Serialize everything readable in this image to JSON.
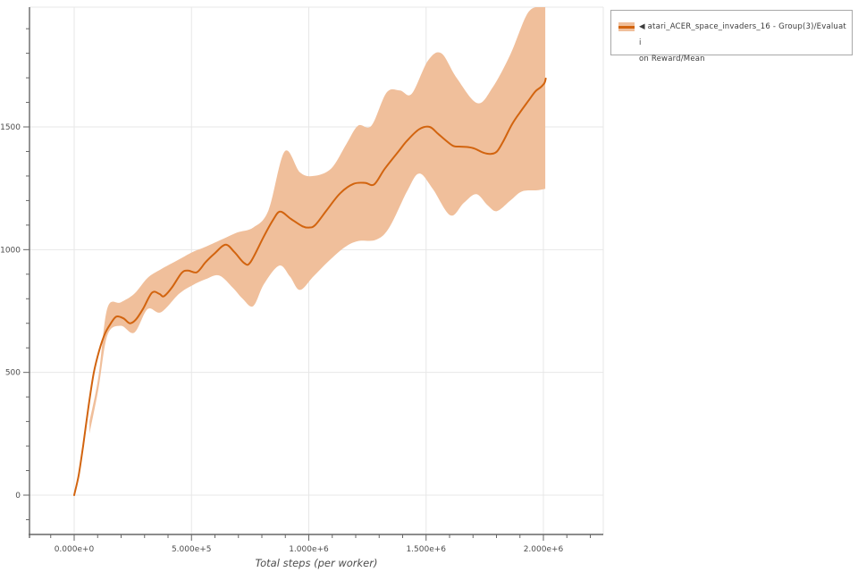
{
  "chart_data": {
    "type": "line",
    "title": "",
    "xlabel": "Total steps (per worker)",
    "ylabel": "",
    "grid": true,
    "xlim": [
      -190000,
      2260000
    ],
    "ylim": [
      -160,
      1988
    ],
    "x_ticks": {
      "values": [
        0,
        500000,
        1000000,
        1500000,
        2000000
      ],
      "labels": [
        "0.000e+0",
        "5.000e+5",
        "1.000e+6",
        "1.500e+6",
        "2.000e+6"
      ]
    },
    "x_minor_step": 100000,
    "y_ticks": {
      "values": [
        0,
        500,
        1000,
        1500
      ],
      "labels": [
        "0",
        "500",
        "1000",
        "1500"
      ]
    },
    "y_minor_step": 100,
    "legend_position": "top-right",
    "series": [
      {
        "name": "Evaluation Reward/Mean",
        "color": "#d2640f",
        "points": [
          [
            0,
            0
          ],
          [
            19000,
            80
          ],
          [
            38000,
            200
          ],
          [
            61000,
            360
          ],
          [
            84000,
            500
          ],
          [
            107000,
            590
          ],
          [
            130000,
            655
          ],
          [
            153000,
            695
          ],
          [
            179000,
            727
          ],
          [
            210000,
            720
          ],
          [
            237000,
            700
          ],
          [
            263000,
            715
          ],
          [
            294000,
            760
          ],
          [
            332000,
            825
          ],
          [
            363000,
            820
          ],
          [
            382000,
            810
          ],
          [
            416000,
            845
          ],
          [
            458000,
            905
          ],
          [
            485000,
            915
          ],
          [
            523000,
            908
          ],
          [
            561000,
            950
          ],
          [
            599000,
            985
          ],
          [
            645000,
            1020
          ],
          [
            683000,
            990
          ],
          [
            725000,
            945
          ],
          [
            752000,
            950
          ],
          [
            809000,
            1055
          ],
          [
            847000,
            1120
          ],
          [
            878000,
            1155
          ],
          [
            924000,
            1125
          ],
          [
            973000,
            1095
          ],
          [
            1000000,
            1090
          ],
          [
            1027000,
            1100
          ],
          [
            1076000,
            1160
          ],
          [
            1134000,
            1230
          ],
          [
            1191000,
            1268
          ],
          [
            1240000,
            1272
          ],
          [
            1279000,
            1266
          ],
          [
            1324000,
            1330
          ],
          [
            1382000,
            1400
          ],
          [
            1420000,
            1445
          ],
          [
            1470000,
            1490
          ],
          [
            1515000,
            1500
          ],
          [
            1553000,
            1470
          ],
          [
            1611000,
            1425
          ],
          [
            1641000,
            1420
          ],
          [
            1676000,
            1418
          ],
          [
            1706000,
            1412
          ],
          [
            1744000,
            1395
          ],
          [
            1775000,
            1390
          ],
          [
            1802000,
            1400
          ],
          [
            1828000,
            1440
          ],
          [
            1866000,
            1510
          ],
          [
            1897000,
            1555
          ],
          [
            1935000,
            1605
          ],
          [
            1966000,
            1645
          ],
          [
            1989000,
            1662
          ],
          [
            2005000,
            1680
          ],
          [
            2010000,
            1697
          ]
        ]
      }
    ],
    "band": {
      "color": "#f0bf9b",
      "upper": [
        [
          65000,
          300
        ],
        [
          103000,
          480
        ],
        [
          141000,
          760
        ],
        [
          198000,
          785
        ],
        [
          256000,
          820
        ],
        [
          313000,
          885
        ],
        [
          370000,
          920
        ],
        [
          447000,
          960
        ],
        [
          504000,
          990
        ],
        [
          561000,
          1012
        ],
        [
          637000,
          1045
        ],
        [
          695000,
          1070
        ],
        [
          763000,
          1090
        ],
        [
          828000,
          1160
        ],
        [
          897000,
          1400
        ],
        [
          962000,
          1315
        ],
        [
          1019000,
          1300
        ],
        [
          1095000,
          1330
        ],
        [
          1160000,
          1430
        ],
        [
          1210000,
          1505
        ],
        [
          1267000,
          1505
        ],
        [
          1332000,
          1640
        ],
        [
          1389000,
          1648
        ],
        [
          1439000,
          1635
        ],
        [
          1508000,
          1770
        ],
        [
          1565000,
          1800
        ],
        [
          1630000,
          1700
        ],
        [
          1718000,
          1597
        ],
        [
          1783000,
          1660
        ],
        [
          1859000,
          1795
        ],
        [
          1928000,
          1955
        ],
        [
          1973000,
          1990
        ],
        [
          2008000,
          1992
        ]
      ],
      "lower": [
        [
          65000,
          250
        ],
        [
          103000,
          430
        ],
        [
          141000,
          650
        ],
        [
          198000,
          690
        ],
        [
          256000,
          662
        ],
        [
          313000,
          758
        ],
        [
          370000,
          745
        ],
        [
          447000,
          820
        ],
        [
          504000,
          855
        ],
        [
          561000,
          880
        ],
        [
          618000,
          895
        ],
        [
          676000,
          845
        ],
        [
          718000,
          800
        ],
        [
          763000,
          770
        ],
        [
          809000,
          860
        ],
        [
          874000,
          935
        ],
        [
          920000,
          890
        ],
        [
          962000,
          836
        ],
        [
          1019000,
          890
        ],
        [
          1084000,
          953
        ],
        [
          1153000,
          1010
        ],
        [
          1210000,
          1035
        ],
        [
          1286000,
          1040
        ],
        [
          1343000,
          1090
        ],
        [
          1420000,
          1240
        ],
        [
          1470000,
          1310
        ],
        [
          1527000,
          1250
        ],
        [
          1603000,
          1140
        ],
        [
          1660000,
          1190
        ],
        [
          1714000,
          1226
        ],
        [
          1763000,
          1180
        ],
        [
          1802000,
          1157
        ],
        [
          1859000,
          1200
        ],
        [
          1908000,
          1237
        ],
        [
          1973000,
          1242
        ],
        [
          2008000,
          1248
        ]
      ]
    }
  },
  "legend": {
    "entries": [
      {
        "label": "◀ atari_ACER_space_invaders_16 - Group(3)/Evaluation Reward/Mean",
        "label_lines": [
          "◀ atari_ACER_space_invaders_16 - Group(3)/Evaluati",
          "on Reward/Mean"
        ],
        "marker_band_color": "#f0bf9b",
        "marker_line_color": "#d2640f"
      }
    ]
  },
  "axes": {
    "x_label": "Total steps (per worker)",
    "tick_color": "#666666",
    "label_color": "#4d4d4d",
    "grid_color": "#e7e7e7"
  }
}
